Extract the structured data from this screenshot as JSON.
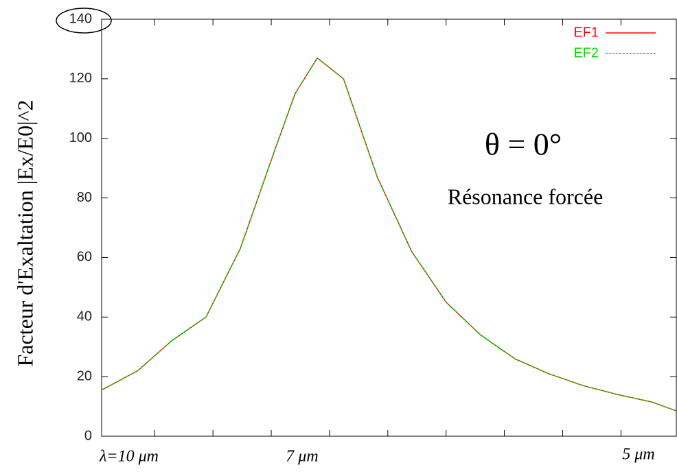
{
  "chart_data": {
    "type": "line",
    "y_label": "Facteur d'Exaltation |Ex/E0|^2",
    "annotations": [
      "θ = 0°",
      "Résonance forcée",
      "λ=10 μm",
      "7 μm",
      "5 μm"
    ],
    "x": [
      0.09,
      0.71,
      1.29,
      1.88,
      2.47,
      3.06,
      3.41,
      3.79,
      4.24,
      4.82,
      5.41,
      6.0,
      6.59,
      7.18,
      7.76,
      8.35,
      8.94,
      9.53,
      9.95
    ],
    "series": [
      {
        "name": "EF1",
        "color": "#ff0000",
        "dash": false,
        "values": [
          15.5,
          22,
          32,
          40,
          63,
          96,
          115,
          127,
          120,
          87,
          62,
          45,
          34,
          26,
          21,
          17,
          14,
          11.5,
          8.5
        ]
      },
      {
        "name": "EF2",
        "color": "#00dd00",
        "dash": true,
        "values": [
          15.5,
          22,
          32,
          40,
          63,
          96,
          115,
          127,
          120,
          87,
          62,
          45,
          34,
          26,
          21,
          17,
          14,
          11.5,
          8.5
        ]
      }
    ],
    "xlim": [
      0.09,
      9.95
    ],
    "xticks": [
      1,
      2,
      3,
      4,
      5,
      6,
      7,
      8,
      9
    ],
    "ylim": [
      0,
      140
    ],
    "yticks": [
      0,
      20,
      40,
      60,
      80,
      100,
      120,
      140
    ],
    "legend": "top-right"
  }
}
